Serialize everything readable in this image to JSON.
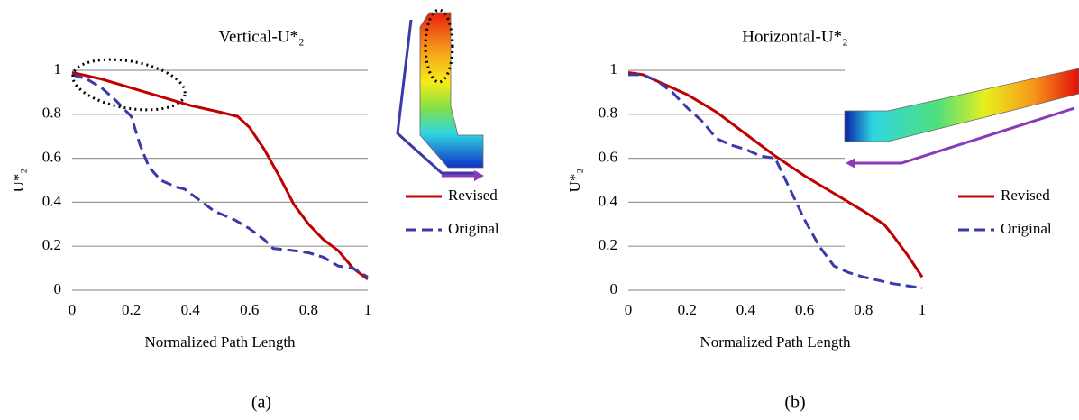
{
  "chart_data": [
    {
      "type": "line",
      "title": "Vertical-U*₂",
      "x_label": "Normalized Path Length",
      "y_label": "U*₂",
      "caption": "(a)",
      "xlim": [
        0,
        1
      ],
      "xticks": [
        0,
        0.2,
        0.4,
        0.6,
        0.8,
        1
      ],
      "ylim": [
        0,
        1
      ],
      "yticks": [
        0,
        0.2,
        0.4,
        0.6,
        0.8,
        1
      ],
      "grid": true,
      "legend": "right",
      "series": [
        {
          "name": "Revised",
          "color": "#c00000",
          "style": "solid",
          "x": [
            0,
            0.1,
            0.2,
            0.3,
            0.4,
            0.5,
            0.56,
            0.6,
            0.65,
            0.7,
            0.75,
            0.8,
            0.85,
            0.9,
            0.95,
            1
          ],
          "values": [
            0.99,
            0.96,
            0.92,
            0.88,
            0.84,
            0.81,
            0.79,
            0.74,
            0.64,
            0.52,
            0.39,
            0.3,
            0.23,
            0.18,
            0.1,
            0.05
          ]
        },
        {
          "name": "Original",
          "color": "#3a3aa8",
          "style": "dashed",
          "x": [
            0,
            0.05,
            0.1,
            0.15,
            0.2,
            0.23,
            0.26,
            0.3,
            0.35,
            0.38,
            0.45,
            0.48,
            0.55,
            0.6,
            0.65,
            0.68,
            0.75,
            0.8,
            0.85,
            0.9,
            0.95,
            1
          ],
          "values": [
            0.98,
            0.96,
            0.92,
            0.86,
            0.79,
            0.66,
            0.56,
            0.5,
            0.47,
            0.46,
            0.39,
            0.36,
            0.32,
            0.28,
            0.23,
            0.19,
            0.18,
            0.17,
            0.15,
            0.11,
            0.1,
            0.06
          ]
        }
      ]
    },
    {
      "type": "line",
      "title": "Horizontal-U*₂",
      "x_label": "Normalized Path Length",
      "y_label": "U*₂",
      "caption": "(b)",
      "xlim": [
        0,
        1
      ],
      "xticks": [
        0,
        0.2,
        0.4,
        0.6,
        0.8,
        1
      ],
      "ylim": [
        0,
        1
      ],
      "yticks": [
        0,
        0.2,
        0.4,
        0.6,
        0.8,
        1
      ],
      "grid": true,
      "legend": "right",
      "series": [
        {
          "name": "Revised",
          "color": "#c00000",
          "style": "solid",
          "x": [
            0,
            0.05,
            0.1,
            0.2,
            0.3,
            0.4,
            0.5,
            0.6,
            0.7,
            0.8,
            0.87,
            0.9,
            0.95,
            1
          ],
          "values": [
            0.99,
            0.98,
            0.95,
            0.89,
            0.81,
            0.71,
            0.61,
            0.52,
            0.44,
            0.36,
            0.3,
            0.25,
            0.16,
            0.06
          ]
        },
        {
          "name": "Original",
          "color": "#3a3aa8",
          "style": "dashed",
          "x": [
            0,
            0.05,
            0.1,
            0.15,
            0.2,
            0.25,
            0.3,
            0.35,
            0.4,
            0.45,
            0.5,
            0.55,
            0.6,
            0.65,
            0.7,
            0.75,
            0.8,
            0.9,
            0.95,
            1
          ],
          "values": [
            0.98,
            0.98,
            0.95,
            0.9,
            0.83,
            0.77,
            0.69,
            0.66,
            0.64,
            0.61,
            0.6,
            0.46,
            0.32,
            0.2,
            0.11,
            0.08,
            0.06,
            0.03,
            0.02,
            0.01
          ]
        }
      ]
    }
  ]
}
